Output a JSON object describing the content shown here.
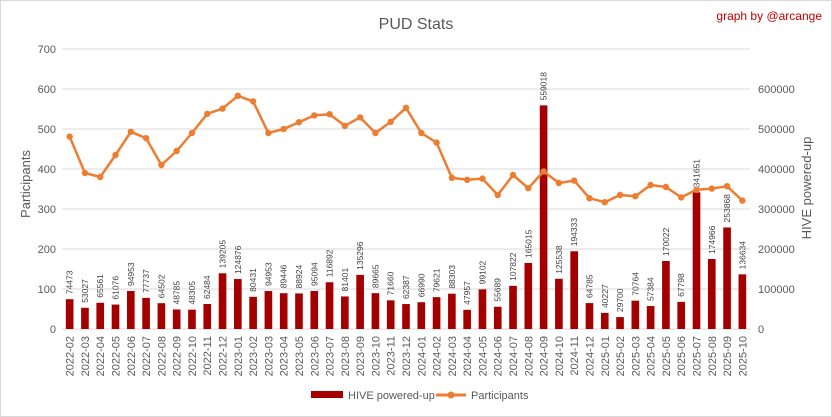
{
  "chart_data": {
    "type": "bar",
    "title": "PUD Stats",
    "credit": "graph by @arcange",
    "y_left_label": "Participants",
    "y_right_label": "HIVE powered-up",
    "y_left_range": [
      0,
      700
    ],
    "y_left_ticks": [
      "0",
      "100",
      "200",
      "300",
      "400",
      "500",
      "600",
      "700"
    ],
    "y_right_range": [
      0,
      700000
    ],
    "y_right_ticks": [
      "0",
      "100000",
      "200000",
      "300000",
      "400000",
      "500000",
      "600000"
    ],
    "grid": true,
    "legend_position": "bottom",
    "colors": {
      "bars": "#a50000",
      "line": "#ed7d31"
    },
    "categories": [
      "2022-02",
      "2022-03",
      "2022-04",
      "2022-05",
      "2022-06",
      "2022-07",
      "2022-08",
      "2022-09",
      "2022-10",
      "2022-11",
      "2022-12",
      "2023-01",
      "2023-02",
      "2023-03",
      "2023-04",
      "2023-05",
      "2023-06",
      "2023-07",
      "2023-08",
      "2023-09",
      "2023-10",
      "2023-11",
      "2023-12",
      "2024-01",
      "2024-02",
      "2024-03",
      "2024-04",
      "2024-05",
      "2024-06",
      "2024-07",
      "2024-08",
      "2024-09",
      "2024-10",
      "2024-11",
      "2024-12",
      "2025-01",
      "2025-02",
      "2025-03",
      "2025-04",
      "2025-05",
      "2025-06",
      "2025-07",
      "2025-08",
      "2025-09",
      "2025-10"
    ],
    "series": [
      {
        "name": "HIVE powered-up",
        "kind": "bar",
        "axis": "right",
        "values": [
          74473,
          53027,
          65561,
          61076,
          94953,
          77737,
          64502,
          48785,
          48305,
          62484,
          139205,
          124876,
          80431,
          94953,
          89446,
          88924,
          95094,
          116892,
          81401,
          135296,
          89665,
          71660,
          62387,
          66990,
          79621,
          88303,
          47957,
          99102,
          55689,
          107822,
          165015,
          559018,
          125538,
          194333,
          64785,
          40227,
          29700,
          70764,
          57384,
          170022,
          67798,
          341651,
          174966,
          253868,
          136634
        ],
        "labels": [
          "74473",
          "53027",
          "65561",
          "61076",
          "94953",
          "77737",
          "64502",
          "48785",
          "48305",
          "62484",
          "139205",
          "124876",
          "80431",
          "94953",
          "89446",
          "88924",
          "95094",
          "116892",
          "81401",
          "135296",
          "89665",
          "71660",
          "62387",
          "66990",
          "79621",
          "88303",
          "47957",
          "99102",
          "55689",
          "107822",
          "165015",
          "559018",
          "125538",
          "194333",
          "64785",
          "40227",
          "29700",
          "70764",
          "57384",
          "170022",
          "67798",
          "341651",
          "174966",
          "253868",
          "136634"
        ]
      },
      {
        "name": "Participants",
        "kind": "line",
        "axis": "left",
        "values": [
          481,
          390,
          380,
          435,
          493,
          477,
          410,
          445,
          490,
          538,
          551,
          583,
          569,
          490,
          500,
          517,
          534,
          537,
          508,
          529,
          490,
          518,
          553,
          490,
          466,
          378,
          373,
          376,
          335,
          385,
          352,
          394,
          365,
          371,
          327,
          317,
          335,
          332,
          360,
          355,
          329,
          348,
          351,
          357,
          321
        ]
      }
    ]
  }
}
